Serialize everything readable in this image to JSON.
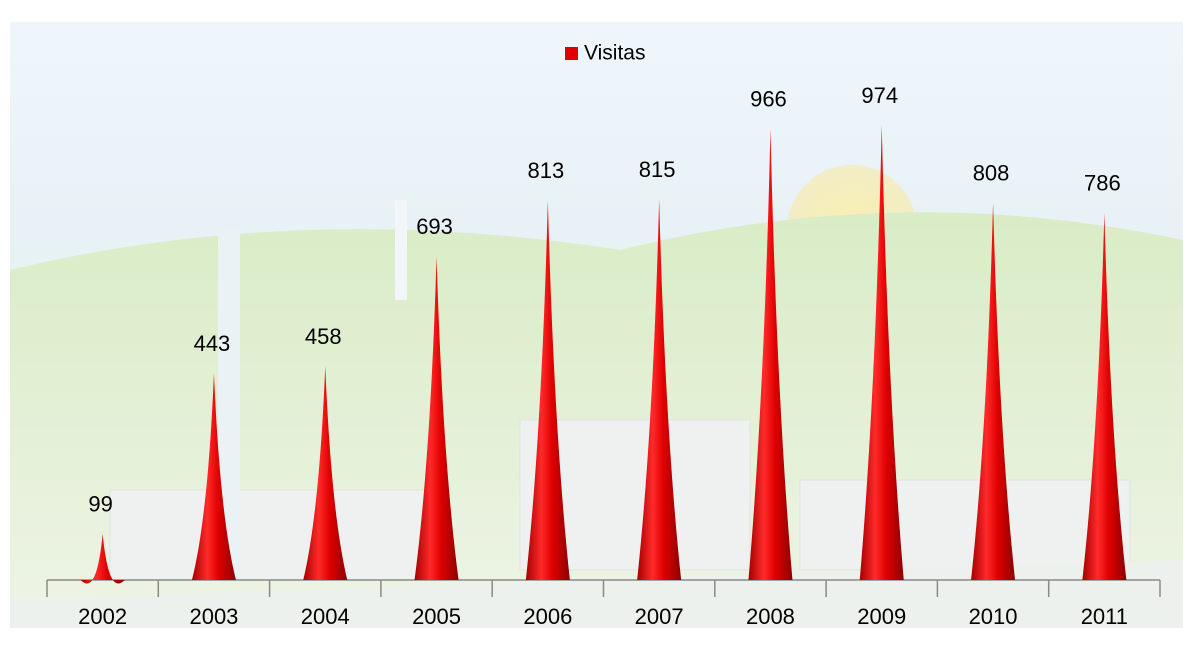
{
  "chart_data": {
    "type": "bar",
    "categories": [
      "2002",
      "2003",
      "2004",
      "2005",
      "2006",
      "2007",
      "2008",
      "2009",
      "2010",
      "2011"
    ],
    "series": [
      {
        "name": "Visitas",
        "color": "#e00000",
        "values": [
          99,
          443,
          458,
          693,
          813,
          815,
          966,
          974,
          808,
          786
        ]
      }
    ],
    "legend": "top"
  }
}
